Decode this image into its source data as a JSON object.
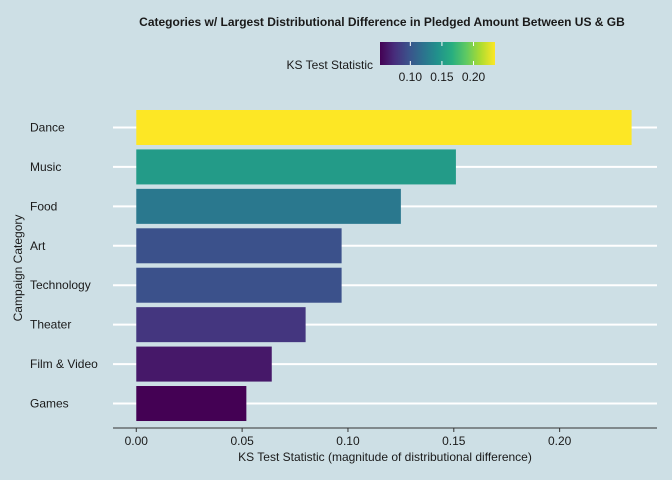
{
  "chart_data": {
    "type": "bar",
    "orientation": "horizontal",
    "title": "Categories w/ Largest Distributional Difference in Pledged Amount Between US & GB",
    "xlabel": "KS Test Statistic (magnitude of distributional difference)",
    "ylabel": "Campaign Category",
    "categories": [
      "Dance",
      "Music",
      "Food",
      "Art",
      "Technology",
      "Theater",
      "Film & Video",
      "Games"
    ],
    "values": [
      0.234,
      0.151,
      0.125,
      0.097,
      0.097,
      0.08,
      0.064,
      0.052
    ],
    "xlim": [
      -0.011,
      0.246
    ],
    "xticks": [
      0.0,
      0.05,
      0.1,
      0.15,
      0.2
    ],
    "xtick_labels": [
      "0.00",
      "0.05",
      "0.10",
      "0.15",
      "0.20"
    ],
    "grid": "horizontal major gridlines, white",
    "legend": {
      "title": "KS Test Statistic",
      "placement": "top",
      "type": "colorbar",
      "range": [
        0.052,
        0.234
      ],
      "ticks": [
        0.1,
        0.15,
        0.2
      ],
      "tick_labels": [
        "0.10",
        "0.15",
        "0.20"
      ]
    },
    "colormap": "viridis",
    "colors": {
      "background": "#cddfe5",
      "gridline": "#ffffff",
      "axis": "#333333"
    }
  }
}
